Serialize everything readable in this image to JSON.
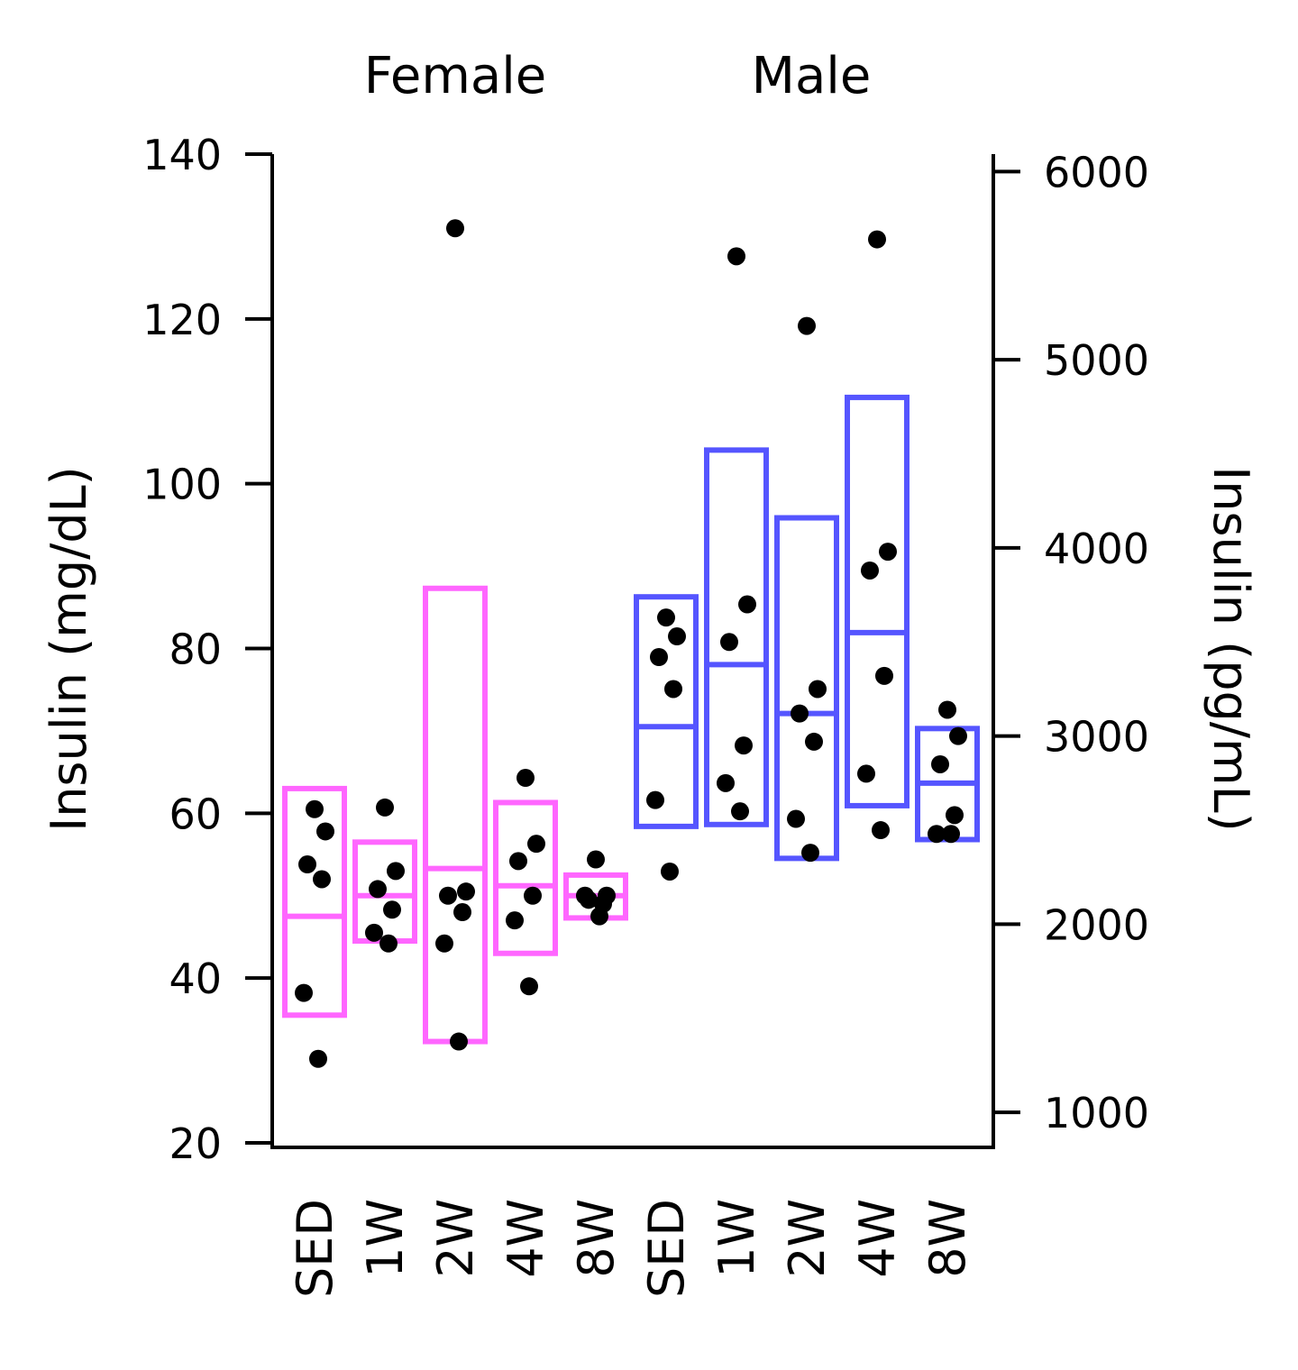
{
  "chart_data": {
    "type": "box",
    "group_labels": [
      "Female",
      "Male"
    ],
    "categories": [
      "SED",
      "1W",
      "2W",
      "4W",
      "8W",
      "SED",
      "1W",
      "2W",
      "4W",
      "8W"
    ],
    "left_axis": {
      "label": "Insulin (mg/dL)",
      "range": [
        20,
        140
      ],
      "ticks": [
        20,
        40,
        60,
        80,
        100,
        120,
        140
      ]
    },
    "right_axis": {
      "label": "Insulin (pg/mL)",
      "range": [
        838,
        6093
      ],
      "ticks": [
        1000,
        2000,
        3000,
        4000,
        5000,
        6000
      ]
    },
    "colors": {
      "Female": "#ff66ff",
      "Male": "#5555ff",
      "points": "#000000"
    },
    "series": [
      {
        "group": "Female",
        "category": "SED",
        "axis": "left",
        "q1": 35.5,
        "median": 47.5,
        "q3": 63.0,
        "points": [
          60.5,
          57.8,
          53.8,
          52.0,
          38.2,
          30.2
        ]
      },
      {
        "group": "Female",
        "category": "1W",
        "axis": "left",
        "q1": 44.5,
        "median": 50.0,
        "q3": 56.5,
        "points": [
          60.7,
          53.0,
          50.8,
          48.3,
          45.5,
          44.2
        ]
      },
      {
        "group": "Female",
        "category": "2W",
        "axis": "left",
        "q1": 32.3,
        "median": 53.3,
        "q3": 87.3,
        "points": [
          131.0,
          50.5,
          50.0,
          48.0,
          44.2,
          32.3
        ]
      },
      {
        "group": "Female",
        "category": "4W",
        "axis": "left",
        "q1": 43.0,
        "median": 51.2,
        "q3": 61.3,
        "points": [
          64.3,
          56.3,
          54.2,
          50.0,
          47.0,
          39.0
        ]
      },
      {
        "group": "Female",
        "category": "8W",
        "axis": "left",
        "q1": 47.3,
        "median": 50.0,
        "q3": 52.5,
        "points": [
          54.4,
          50.0,
          49.5,
          49.0,
          50.0,
          47.5
        ]
      },
      {
        "group": "Male",
        "category": "SED",
        "axis": "right",
        "q1": 2520,
        "median": 3050,
        "q3": 3740,
        "points": [
          3630,
          3530,
          3420,
          3250,
          2660,
          2280
        ]
      },
      {
        "group": "Male",
        "category": "1W",
        "axis": "right",
        "q1": 2530,
        "median": 3380,
        "q3": 4520,
        "points": [
          5550,
          3700,
          3500,
          2950,
          2750,
          2600
        ]
      },
      {
        "group": "Male",
        "category": "2W",
        "axis": "right",
        "q1": 2350,
        "median": 3120,
        "q3": 4160,
        "points": [
          5180,
          3250,
          3120,
          2970,
          2560,
          2380
        ]
      },
      {
        "group": "Male",
        "category": "4W",
        "axis": "right",
        "q1": 2630,
        "median": 3550,
        "q3": 4800,
        "points": [
          5640,
          3980,
          3880,
          3320,
          2800,
          2500
        ]
      },
      {
        "group": "Male",
        "category": "8W",
        "axis": "right",
        "q1": 2450,
        "median": 2750,
        "q3": 3040,
        "points": [
          3140,
          3000,
          2850,
          2580,
          2480,
          2480
        ]
      }
    ]
  }
}
